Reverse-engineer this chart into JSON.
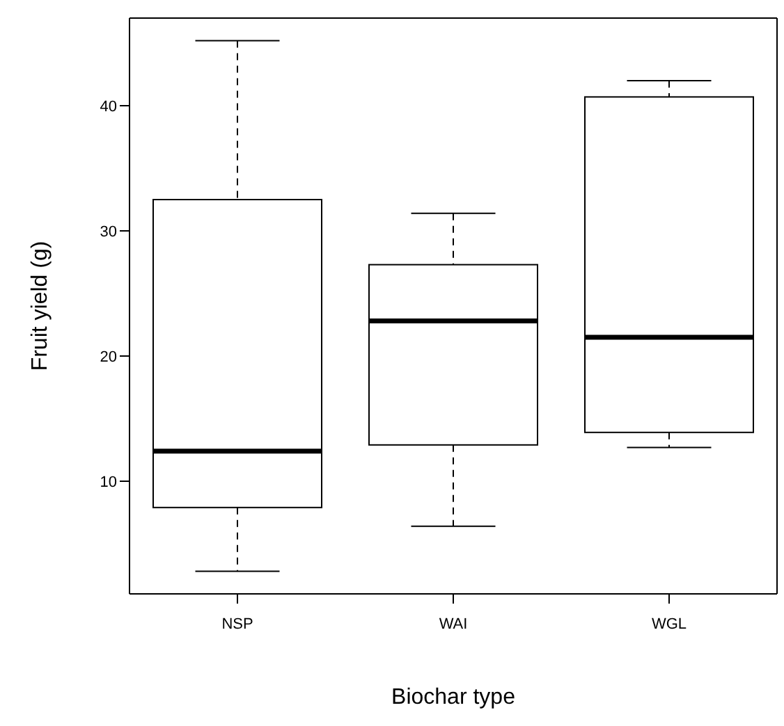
{
  "chart_data": {
    "type": "box",
    "xlabel": "Biochar type",
    "ylabel": "Fruit yield (g)",
    "categories": [
      "NSP",
      "WAI",
      "WGL"
    ],
    "boxes": [
      {
        "low": 2.8,
        "q1": 7.9,
        "median": 12.4,
        "q3": 32.5,
        "high": 45.2
      },
      {
        "low": 6.4,
        "q1": 12.9,
        "median": 22.8,
        "q3": 27.3,
        "high": 31.4
      },
      {
        "low": 12.7,
        "q1": 13.9,
        "median": 21.5,
        "q3": 40.7,
        "high": 42.0
      }
    ],
    "color": "#ffffff",
    "ylim": [
      1,
      47
    ],
    "yticks": [
      10,
      20,
      30,
      40
    ],
    "grid": false
  }
}
